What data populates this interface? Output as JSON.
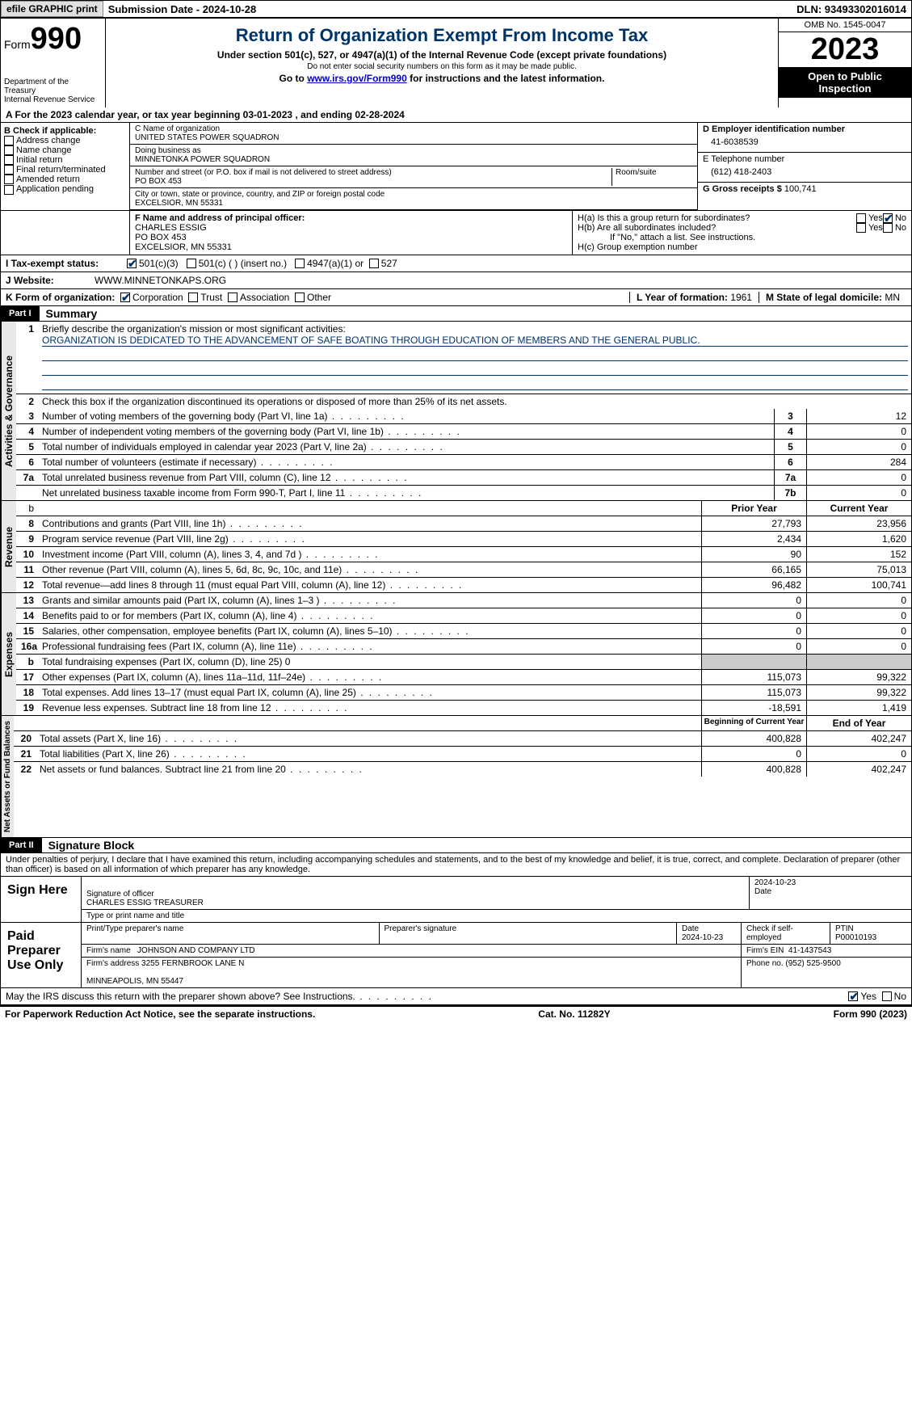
{
  "topbar": {
    "efile": "efile GRAPHIC print",
    "submission": "Submission Date - 2024-10-28",
    "dln": "DLN: 93493302016014"
  },
  "header": {
    "form_label": "Form",
    "form_num": "990",
    "dept": "Department of the Treasury",
    "irs": "Internal Revenue Service",
    "title": "Return of Organization Exempt From Income Tax",
    "sub1": "Under section 501(c), 527, or 4947(a)(1) of the Internal Revenue Code (except private foundations)",
    "sub2": "Do not enter social security numbers on this form as it may be made public.",
    "sub3_a": "Go to ",
    "sub3_link": "www.irs.gov/Form990",
    "sub3_b": " for instructions and the latest information.",
    "omb": "OMB No. 1545-0047",
    "year": "2023",
    "inspect": "Open to Public Inspection"
  },
  "rowA": {
    "text_a": "A For the 2023 calendar year, or tax year beginning ",
    "begin": "03-01-2023",
    "text_b": " , and ending ",
    "end": "02-28-2024"
  },
  "colB": {
    "label": "B Check if applicable:",
    "items": [
      "Address change",
      "Name change",
      "Initial return",
      "Final return/terminated",
      "Amended return",
      "Application pending"
    ]
  },
  "colC": {
    "name_lbl": "C Name of organization",
    "name": "UNITED STATES POWER SQUADRON",
    "dba_lbl": "Doing business as",
    "dba": "MINNETONKA POWER SQUADRON",
    "street_lbl": "Number and street (or P.O. box if mail is not delivered to street address)",
    "room_lbl": "Room/suite",
    "street": "PO BOX 453",
    "city_lbl": "City or town, state or province, country, and ZIP or foreign postal code",
    "city": "EXCELSIOR, MN  55331",
    "officer_lbl": "F  Name and address of principal officer:",
    "officer": "CHARLES ESSIG\nPO BOX 453\nEXCELSIOR, MN  55331"
  },
  "colD": {
    "ein_lbl": "D Employer identification number",
    "ein": "41-6038539",
    "tel_lbl": "E Telephone number",
    "tel": "(612) 418-2403",
    "gross_lbl": "G Gross receipts $ ",
    "gross": "100,741"
  },
  "rowH": {
    "ha": "H(a)  Is this a group return for subordinates?",
    "ha_yes": "Yes",
    "ha_no": "No",
    "hb": "H(b)  Are all subordinates included?",
    "hb_yes": "Yes",
    "hb_no": "No",
    "hb_note": "If \"No,\" attach a list. See instructions.",
    "hc": "H(c)  Group exemption number"
  },
  "rowI": {
    "label": "I  Tax-exempt status:",
    "o1": "501(c)(3)",
    "o2": "501(c) (  ) (insert no.)",
    "o3": "4947(a)(1) or",
    "o4": "527"
  },
  "rowJ": {
    "label": "J  Website:",
    "val": "WWW.MINNETONKAPS.ORG"
  },
  "rowK": {
    "label": "K Form of organization:",
    "o1": "Corporation",
    "o2": "Trust",
    "o3": "Association",
    "o4": "Other",
    "l_lbl": "L Year of formation: ",
    "l_val": "1961",
    "m_lbl": "M State of legal domicile: ",
    "m_val": "MN"
  },
  "part1": {
    "bar": "Part I",
    "title": "Summary"
  },
  "summary": {
    "tab_ag": "Activities & Governance",
    "tab_rev": "Revenue",
    "tab_exp": "Expenses",
    "tab_na": "Net Assets or Fund Balances",
    "q1_lbl": "Briefly describe the organization's mission or most significant activities:",
    "q1_val": "ORGANIZATION IS DEDICATED TO THE ADVANCEMENT OF SAFE BOATING THROUGH EDUCATION OF MEMBERS AND THE GENERAL PUBLIC.",
    "q2": "Check this box      if the organization discontinued its operations or disposed of more than 25% of its net assets.",
    "rows_ag": [
      {
        "n": "3",
        "t": "Number of voting members of the governing body (Part VI, line 1a)",
        "box": "3",
        "v": "12"
      },
      {
        "n": "4",
        "t": "Number of independent voting members of the governing body (Part VI, line 1b)",
        "box": "4",
        "v": "0"
      },
      {
        "n": "5",
        "t": "Total number of individuals employed in calendar year 2023 (Part V, line 2a)",
        "box": "5",
        "v": "0"
      },
      {
        "n": "6",
        "t": "Total number of volunteers (estimate if necessary)",
        "box": "6",
        "v": "284"
      },
      {
        "n": "7a",
        "t": "Total unrelated business revenue from Part VIII, column (C), line 12",
        "box": "7a",
        "v": "0"
      },
      {
        "n": "",
        "t": "Net unrelated business taxable income from Form 990-T, Part I, line 11",
        "box": "7b",
        "v": "0"
      }
    ],
    "hdr_prior": "Prior Year",
    "hdr_curr": "Current Year",
    "rows_rev": [
      {
        "n": "8",
        "t": "Contributions and grants (Part VIII, line 1h)",
        "p": "27,793",
        "c": "23,956"
      },
      {
        "n": "9",
        "t": "Program service revenue (Part VIII, line 2g)",
        "p": "2,434",
        "c": "1,620"
      },
      {
        "n": "10",
        "t": "Investment income (Part VIII, column (A), lines 3, 4, and 7d )",
        "p": "90",
        "c": "152"
      },
      {
        "n": "11",
        "t": "Other revenue (Part VIII, column (A), lines 5, 6d, 8c, 9c, 10c, and 11e)",
        "p": "66,165",
        "c": "75,013"
      },
      {
        "n": "12",
        "t": "Total revenue—add lines 8 through 11 (must equal Part VIII, column (A), line 12)",
        "p": "96,482",
        "c": "100,741"
      }
    ],
    "rows_exp": [
      {
        "n": "13",
        "t": "Grants and similar amounts paid (Part IX, column (A), lines 1–3 )",
        "p": "0",
        "c": "0"
      },
      {
        "n": "14",
        "t": "Benefits paid to or for members (Part IX, column (A), line 4)",
        "p": "0",
        "c": "0"
      },
      {
        "n": "15",
        "t": "Salaries, other compensation, employee benefits (Part IX, column (A), lines 5–10)",
        "p": "0",
        "c": "0"
      },
      {
        "n": "16a",
        "t": "Professional fundraising fees (Part IX, column (A), line 11e)",
        "p": "0",
        "c": "0"
      },
      {
        "n": "b",
        "t": "Total fundraising expenses (Part IX, column (D), line 25) 0",
        "p": "",
        "c": "",
        "grey": true
      },
      {
        "n": "17",
        "t": "Other expenses (Part IX, column (A), lines 11a–11d, 11f–24e)",
        "p": "115,073",
        "c": "99,322"
      },
      {
        "n": "18",
        "t": "Total expenses. Add lines 13–17 (must equal Part IX, column (A), line 25)",
        "p": "115,073",
        "c": "99,322"
      },
      {
        "n": "19",
        "t": "Revenue less expenses. Subtract line 18 from line 12",
        "p": "-18,591",
        "c": "1,419"
      }
    ],
    "hdr_begin": "Beginning of Current Year",
    "hdr_end": "End of Year",
    "rows_na": [
      {
        "n": "20",
        "t": "Total assets (Part X, line 16)",
        "p": "400,828",
        "c": "402,247"
      },
      {
        "n": "21",
        "t": "Total liabilities (Part X, line 26)",
        "p": "0",
        "c": "0"
      },
      {
        "n": "22",
        "t": "Net assets or fund balances. Subtract line 21 from line 20",
        "p": "400,828",
        "c": "402,247"
      }
    ]
  },
  "part2": {
    "bar": "Part II",
    "title": "Signature Block",
    "decl": "Under penalties of perjury, I declare that I have examined this return, including accompanying schedules and statements, and to the best of my knowledge and belief, it is true, correct, and complete. Declaration of preparer (other than officer) is based on all information of which preparer has any knowledge."
  },
  "sign": {
    "here": "Sign Here",
    "sig_lbl": "Signature of officer",
    "date_lbl": "Date",
    "date": "2024-10-23",
    "name_lbl": "Type or print name and title",
    "name": "CHARLES ESSIG TREASURER",
    "paid": "Paid Preparer Use Only",
    "p_name_lbl": "Print/Type preparer's name",
    "p_sig_lbl": "Preparer's signature",
    "p_date_lbl": "Date",
    "p_date": "2024-10-23",
    "p_self": "Check        if self-employed",
    "ptin_lbl": "PTIN",
    "ptin": "P00010193",
    "firm_lbl": "Firm's name",
    "firm": "JOHNSON AND COMPANY LTD",
    "firm_ein_lbl": "Firm's EIN",
    "firm_ein": "41-1437543",
    "firm_addr_lbl": "Firm's address",
    "firm_addr": "3255 FERNBROOK LANE N\n\nMINNEAPOLIS, MN  55447",
    "phone_lbl": "Phone no.",
    "phone": "(952) 525-9500",
    "discuss": "May the IRS discuss this return with the preparer shown above? See Instructions.",
    "yes": "Yes",
    "no": "No"
  },
  "footer": {
    "left": "For Paperwork Reduction Act Notice, see the separate instructions.",
    "mid": "Cat. No. 11282Y",
    "right": "Form 990 (2023)"
  }
}
